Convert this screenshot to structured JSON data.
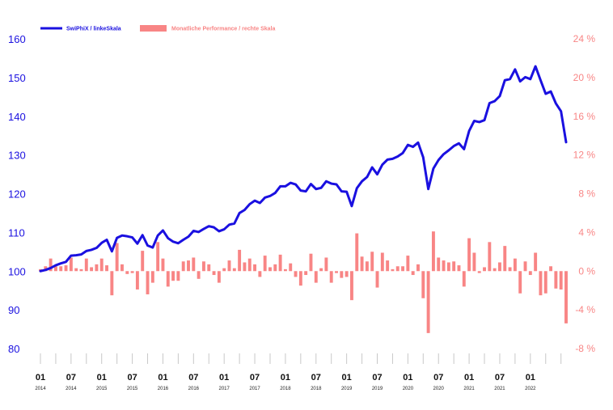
{
  "chart_data": {
    "type": "line",
    "legend": {
      "placement": "top-left",
      "items": [
        {
          "label": "SwiPhiX / linkeSkala",
          "color": "#1a10e0",
          "kind": "line"
        },
        {
          "label": "Monatliche Performance / rechte Skala",
          "color": "#f88585",
          "kind": "bar"
        }
      ]
    },
    "colors": {
      "line": "#1a10e0",
      "bars": "#f88585",
      "axis_tick": "#c8c8c8"
    },
    "y_left": {
      "ticks": [
        "160",
        "150",
        "140",
        "130",
        "120",
        "110",
        "100",
        "90",
        "80"
      ],
      "range": [
        80,
        160
      ]
    },
    "y_right": {
      "ticks": [
        "24 %",
        "20 %",
        "16 %",
        "12 %",
        "8 %",
        "4 %",
        "0 %",
        "-4 %",
        "-8 %"
      ],
      "range": [
        -8,
        24
      ]
    },
    "x_ticks": [
      {
        "month": "01",
        "year": "2014",
        "index": 0
      },
      {
        "month": "07",
        "year": "2014",
        "index": 6
      },
      {
        "month": "01",
        "year": "2015",
        "index": 12
      },
      {
        "month": "07",
        "year": "2015",
        "index": 18
      },
      {
        "month": "01",
        "year": "2016",
        "index": 24
      },
      {
        "month": "07",
        "year": "2016",
        "index": 30
      },
      {
        "month": "01",
        "year": "2017",
        "index": 36
      },
      {
        "month": "07",
        "year": "2017",
        "index": 42
      },
      {
        "month": "01",
        "year": "2018",
        "index": 48
      },
      {
        "month": "07",
        "year": "2018",
        "index": 54
      },
      {
        "month": "01",
        "year": "2019",
        "index": 60
      },
      {
        "month": "07",
        "year": "2019",
        "index": 66
      },
      {
        "month": "01",
        "year": "2020",
        "index": 72
      },
      {
        "month": "07",
        "year": "2020",
        "index": 78
      },
      {
        "month": "01",
        "year": "2021",
        "index": 84
      },
      {
        "month": "07",
        "year": "2021",
        "index": 90
      },
      {
        "month": "01",
        "year": "2022",
        "index": 96
      }
    ],
    "series": [
      {
        "name": "SwiPhiX / linkeSkala",
        "axis": "left",
        "values": [
          100.0,
          100.3,
          100.8,
          101.5,
          102.0,
          102.4,
          104.0,
          104.1,
          104.3,
          105.2,
          105.5,
          106.0,
          107.3,
          108.1,
          105.1,
          108.6,
          109.2,
          109.0,
          108.7,
          107.1,
          109.3,
          106.6,
          106.1,
          109.2,
          110.5,
          108.5,
          107.6,
          107.2,
          108.1,
          108.9,
          110.4,
          110.1,
          110.9,
          111.6,
          111.3,
          110.3,
          110.8,
          112.0,
          112.3,
          115.0,
          115.8,
          117.3,
          118.2,
          117.6,
          119.0,
          119.4,
          120.2,
          121.9,
          121.9,
          122.8,
          122.4,
          120.8,
          120.6,
          122.5,
          121.2,
          121.5,
          123.2,
          122.6,
          122.4,
          120.6,
          120.5,
          116.8,
          121.4,
          123.2,
          124.3,
          126.8,
          125.0,
          127.5,
          128.8,
          129.0,
          129.6,
          130.5,
          132.6,
          132.1,
          133.2,
          129.4,
          121.2,
          126.5,
          128.7,
          130.2,
          131.2,
          132.3,
          133.0,
          131.5,
          136.2,
          138.8,
          138.5,
          139.0,
          143.4,
          143.9,
          145.2,
          149.3,
          149.6,
          152.1,
          149.0,
          150.1,
          149.6,
          152.9,
          149.3,
          145.8,
          146.4,
          143.3,
          141.3,
          133.3
        ]
      },
      {
        "name": "Monatliche Performance / rechte Skala",
        "axis": "right",
        "values": [
          0.2,
          0.5,
          1.3,
          0.5,
          0.5,
          0.6,
          1.4,
          0.3,
          0.2,
          1.3,
          0.4,
          0.7,
          1.3,
          0.6,
          -2.5,
          2.9,
          0.7,
          -0.3,
          -0.2,
          -1.9,
          2.1,
          -2.4,
          -1.2,
          3.0,
          1.3,
          -1.6,
          -1.0,
          -1.0,
          1.0,
          1.1,
          1.4,
          -0.8,
          1.0,
          0.7,
          -0.4,
          -1.2,
          0.3,
          1.1,
          0.3,
          2.2,
          0.9,
          1.3,
          0.7,
          -0.6,
          1.6,
          0.4,
          0.7,
          1.7,
          0.2,
          0.8,
          -0.6,
          -1.5,
          -0.4,
          1.8,
          -1.2,
          0.3,
          1.4,
          -1.2,
          -0.2,
          -0.7,
          -0.6,
          -3.0,
          3.9,
          1.5,
          1.0,
          2.0,
          -1.7,
          1.9,
          1.1,
          0.2,
          0.5,
          0.5,
          1.6,
          -0.4,
          0.7,
          -2.8,
          -6.4,
          4.1,
          1.4,
          1.1,
          0.9,
          1.0,
          0.6,
          -1.6,
          3.4,
          1.9,
          -0.2,
          0.4,
          3.0,
          0.3,
          0.9,
          2.6,
          0.4,
          1.3,
          -2.3,
          1.0,
          -0.4,
          1.9,
          -2.5,
          -2.3,
          0.5,
          -1.8,
          -1.9,
          -5.4
        ]
      }
    ]
  }
}
